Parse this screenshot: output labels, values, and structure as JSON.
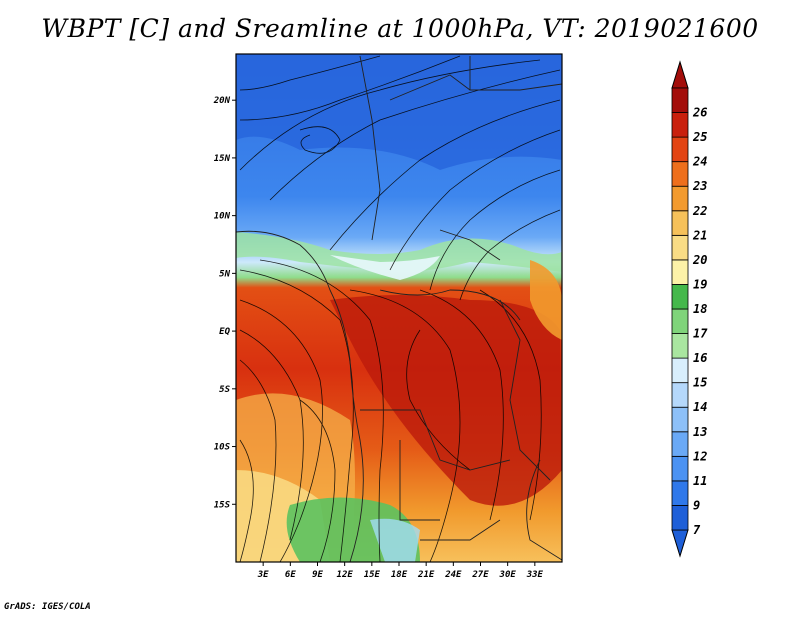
{
  "title": "WBPT [C] and Sreamline at 1000hPa, VT: 2019021600",
  "credit": "GrADS: IGES/COLA",
  "map": {
    "lon_range": [
      0,
      36
    ],
    "lat_range": [
      -20,
      24
    ],
    "lon_ticks": [
      "3E",
      "6E",
      "9E",
      "12E",
      "15E",
      "18E",
      "21E",
      "24E",
      "27E",
      "30E",
      "33E"
    ],
    "lon_tick_values": [
      3,
      6,
      9,
      12,
      15,
      18,
      21,
      24,
      27,
      30,
      33
    ],
    "lat_ticks": [
      "20N",
      "15N",
      "10N",
      "5N",
      "EQ",
      "5S",
      "10S",
      "15S"
    ],
    "lat_tick_values": [
      20,
      15,
      10,
      5,
      0,
      -5,
      -10,
      -15
    ]
  },
  "colorbar": {
    "labels": [
      "7",
      "9",
      "11",
      "12",
      "13",
      "14",
      "15",
      "16",
      "17",
      "18",
      "19",
      "20",
      "21",
      "22",
      "23",
      "24",
      "25",
      "26"
    ],
    "colors": [
      "#1e5fd8",
      "#2f78ea",
      "#4b92f2",
      "#6aa9f6",
      "#8dc0f8",
      "#b5d8fb",
      "#d8eefc",
      "#a9e6a0",
      "#7fd47a",
      "#45b84b",
      "#fdf2a8",
      "#f9dc85",
      "#f6c15a",
      "#f29a2e",
      "#ee6f1c",
      "#e34413",
      "#c9200d",
      "#a30d0a"
    ]
  }
}
